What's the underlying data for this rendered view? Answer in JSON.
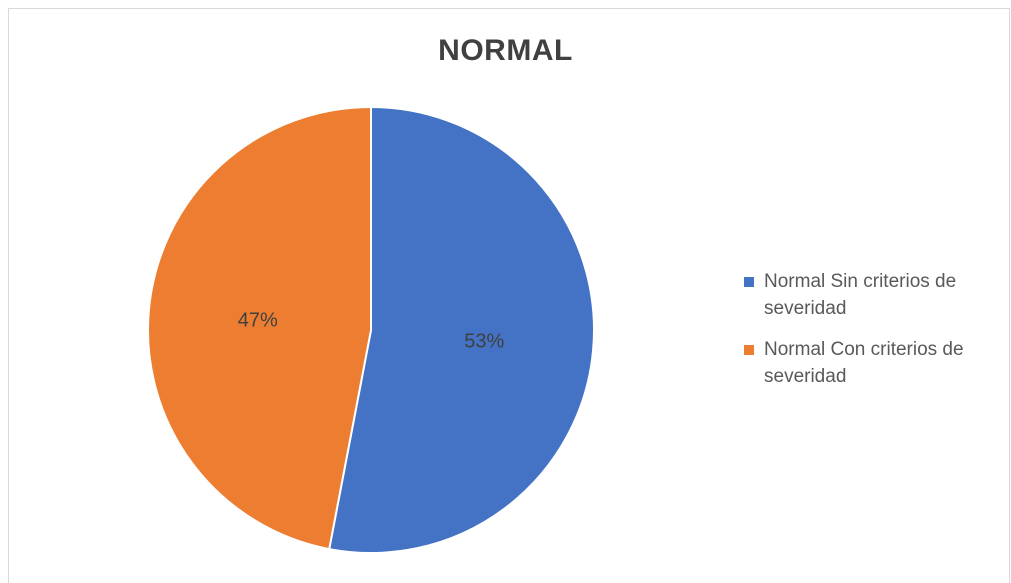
{
  "chart_data": {
    "type": "pie",
    "title": "NORMAL",
    "slices": [
      {
        "label": "Normal Sin criterios de severidad",
        "value": 53,
        "display": "53%",
        "color": "#4472C4"
      },
      {
        "label": "Normal Con criterios de severidad",
        "value": 47,
        "display": "47%",
        "color": "#ED7D31"
      }
    ],
    "legend_position": "right",
    "data_label_color": "#404040"
  }
}
